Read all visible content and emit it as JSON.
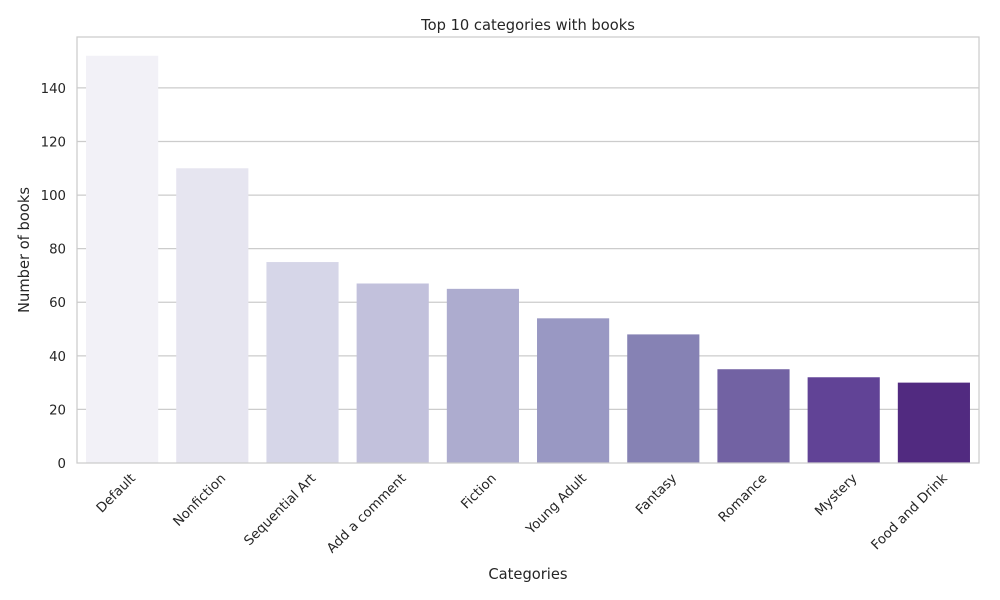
{
  "chart_data": {
    "type": "bar",
    "title": "Top 10 categories with books",
    "xlabel": "Categories",
    "ylabel": "Number of books",
    "categories": [
      "Default",
      "Nonfiction",
      "Sequential Art",
      "Add a comment",
      "Fiction",
      "Young Adult",
      "Fantasy",
      "Romance",
      "Mystery",
      "Food and Drink"
    ],
    "values": [
      152,
      110,
      75,
      67,
      65,
      54,
      48,
      35,
      32,
      30
    ],
    "bar_colors": [
      "#f2f1f7",
      "#e6e5f0",
      "#d6d6e8",
      "#c2c1dc",
      "#adaccf",
      "#9998c3",
      "#8682b4",
      "#7262a3",
      "#614396",
      "#512a80"
    ],
    "ylim": [
      0,
      159
    ],
    "yticks": [
      0,
      20,
      40,
      60,
      80,
      100,
      120,
      140
    ],
    "grid": true,
    "colors": {
      "grid": "#cccccc",
      "frame": "#cccccc",
      "text": "#262626",
      "background": "#ffffff"
    }
  }
}
